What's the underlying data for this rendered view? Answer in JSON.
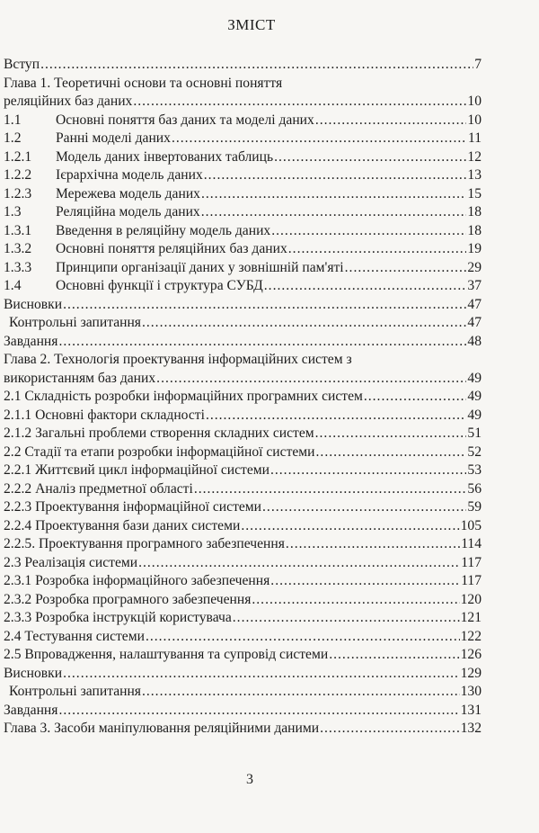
{
  "title": "ЗМІСТ",
  "entries": [
    {
      "num": "",
      "label": "Вступ",
      "page": "7"
    },
    {
      "num": "",
      "label": "Глава 1. Теоретичні основи та основні поняття",
      "page": ""
    },
    {
      "num": "",
      "label": "реляційних баз даних",
      "page": "10"
    },
    {
      "num": "1.1",
      "label": "Основні поняття баз даних та  моделі даних",
      "page": "10"
    },
    {
      "num": "1.2",
      "label": "Ранні моделі даних",
      "page": "11"
    },
    {
      "num": "1.2.1",
      "label": "Модель даних інвертованих таблиць",
      "page": "12"
    },
    {
      "num": "1.2.2",
      "label": "Ієрархічна модель даних",
      "page": "13"
    },
    {
      "num": "1.2.3",
      "label": "Мережева модель даних",
      "page": "15"
    },
    {
      "num": "1.3",
      "label": "Реляційна модель даних",
      "page": "18"
    },
    {
      "num": "1.3.1",
      "label": "Введення в реляційну модель даних",
      "page": "18"
    },
    {
      "num": "1.3.2",
      "label": "Основні поняття реляційних баз даних",
      "page": "19"
    },
    {
      "num": "1.3.3",
      "label": "Принципи організації даних у зовнішній пам'яті",
      "page": "29"
    },
    {
      "num": "1.4",
      "label": "Основні функції і структура  СУБД",
      "page": "37"
    },
    {
      "num": "",
      "label": "Висновки",
      "page": "47"
    },
    {
      "num": "",
      "label": "Контрольні запитання",
      "page": "47",
      "indent": true
    },
    {
      "num": "",
      "label": "Завдання",
      "page": "48"
    },
    {
      "num": "",
      "label": "Глава 2. Технологія проектування інформаційних систем з",
      "page": ""
    },
    {
      "num": "",
      "label": "використанням баз даних",
      "page": "49"
    },
    {
      "num": "",
      "label": "2.1 Складність розробки інформаційних програмних систем",
      "page": "49"
    },
    {
      "num": "",
      "label": "2.1.1 Основні фактори складності",
      "page": "49"
    },
    {
      "num": "",
      "label": "2.1.2 Загальні проблеми створення складних систем",
      "page": "51"
    },
    {
      "num": "",
      "label": "2.2 Стадії та етапи розробки інформаційної системи",
      "page": "52"
    },
    {
      "num": "",
      "label": "2.2.1 Життєвий цикл інформаційної системи",
      "page": "53"
    },
    {
      "num": "",
      "label": "2.2.2 Аналіз предметної області",
      "page": "56"
    },
    {
      "num": "",
      "label": "2.2.3 Проектування інформаційної системи",
      "page": "59"
    },
    {
      "num": "",
      "label": "2.2.4 Проектування бази даних системи",
      "page": "105"
    },
    {
      "num": "",
      "label": "2.2.5. Проектування програмного забезпечення",
      "page": "114"
    },
    {
      "num": "",
      "label": "2.3 Реалізація системи",
      "page": "117"
    },
    {
      "num": "",
      "label": "2.3.1 Розробка інформаційного забезпечення",
      "page": "117"
    },
    {
      "num": "",
      "label": "2.3.2 Розробка програмного забезпечення",
      "page": "120"
    },
    {
      "num": "",
      "label": "2.3.3 Розробка інструкцій користувача",
      "page": "121"
    },
    {
      "num": "",
      "label": "2.4 Тестування системи",
      "page": "122"
    },
    {
      "num": "",
      "label": "2.5 Впровадження, налаштування та супровід системи",
      "page": "126"
    },
    {
      "num": "",
      "label": "Висновки",
      "page": "129"
    },
    {
      "num": "",
      "label": "Контрольні запитання",
      "page": "130",
      "indent": true
    },
    {
      "num": "",
      "label": "Завдання",
      "page": "131"
    },
    {
      "num": "",
      "label": "Глава 3. Засоби маніпулювання реляційними даними",
      "page": "132"
    }
  ],
  "page_number": "3"
}
